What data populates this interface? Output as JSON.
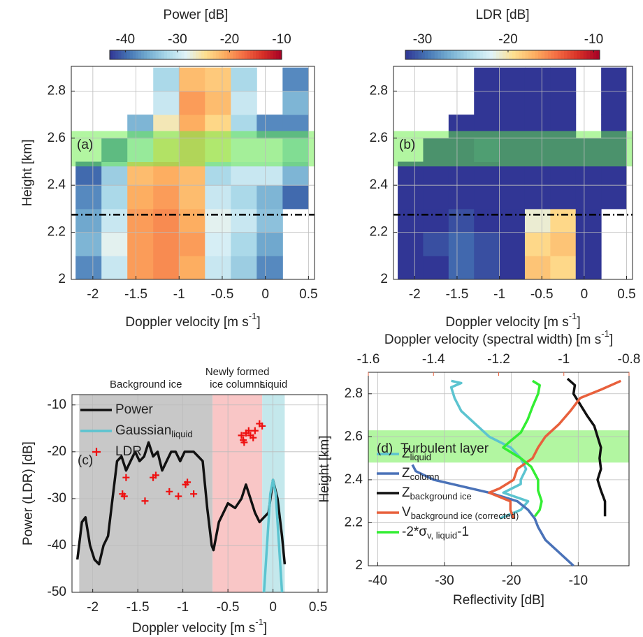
{
  "chart_data": [
    {
      "type": "heatmap",
      "colorbar_label": "Power [dB]",
      "clim": [
        -43,
        -10
      ],
      "cticks": [
        -40,
        -30,
        -20,
        -10
      ],
      "panel_label": "(a)",
      "xlabel": "Doppler velocity [m s",
      "xlabel_sup": "-1",
      "xlabel_end": "]",
      "ylabel": "Height [km]",
      "xlim": [
        -2.25,
        0.57
      ],
      "ylim": [
        2,
        2.905
      ],
      "xticks": [
        -2,
        -1.5,
        -1,
        -0.5,
        0,
        0.5
      ],
      "yticks": [
        2,
        2.2,
        2.4,
        2.6,
        2.8
      ],
      "grid": true,
      "colormap": [
        "#313695",
        "#4575b4",
        "#74add1",
        "#abd9e9",
        "#e0f3f8",
        "#fee090",
        "#fdae61",
        "#f46d43",
        "#d73027",
        "#a50026"
      ],
      "x_edges": [
        -2.2,
        -1.9,
        -1.6,
        -1.3,
        -1.0,
        -0.7,
        -0.4,
        -0.1,
        0.2,
        0.5
      ],
      "y_edges": [
        2.0,
        2.1,
        2.2,
        2.3,
        2.4,
        2.5,
        2.6,
        2.7,
        2.8,
        2.9
      ],
      "values": [
        [
          -38,
          -30,
          -20,
          -19,
          -21,
          -30,
          -33,
          -38,
          null
        ],
        [
          -35,
          -28,
          -20,
          -19,
          -20,
          -29,
          -32,
          -36,
          null
        ],
        [
          -36,
          -30,
          -20,
          -19,
          -21,
          -28,
          -30,
          -34,
          null
        ],
        [
          -38,
          -32,
          -21,
          -20,
          -22,
          -30,
          -32,
          -35,
          -40
        ],
        [
          -40,
          -33,
          -22,
          -21,
          -22,
          -32,
          -30,
          -30,
          -35
        ],
        [
          null,
          -38,
          -30,
          -24,
          -22,
          -25,
          -28,
          -28,
          -33
        ],
        [
          null,
          null,
          -35,
          -26,
          -21,
          -24,
          -32,
          -38,
          -38
        ],
        [
          null,
          null,
          null,
          -30,
          -20,
          -22,
          -30,
          null,
          -35
        ],
        [
          null,
          null,
          null,
          -32,
          -22,
          -23,
          -32,
          null,
          -38
        ]
      ],
      "band": {
        "ylim": [
          2.48,
          2.63
        ],
        "color": "#66ee44"
      },
      "hline": 2.275
    },
    {
      "type": "heatmap",
      "colorbar_label": "LDR [dB]",
      "clim": [
        -32,
        -9.3
      ],
      "cticks": [
        -30,
        -20,
        -10
      ],
      "panel_label": "(b)",
      "xlabel": "Doppler velocity [m s",
      "xlabel_sup": "-1",
      "xlabel_end": "]",
      "xlim": [
        -2.25,
        0.57
      ],
      "ylim": [
        2,
        2.905
      ],
      "xticks": [
        -2,
        -1.5,
        -1,
        -0.5,
        0,
        0.5
      ],
      "yticks": [
        2,
        2.2,
        2.4,
        2.6,
        2.8
      ],
      "grid": true,
      "colormap": [
        "#313695",
        "#4575b4",
        "#74add1",
        "#abd9e9",
        "#e0f3f8",
        "#fee090",
        "#fdae61",
        "#f46d43",
        "#d73027",
        "#a50026"
      ],
      "x_edges": [
        -2.2,
        -1.9,
        -1.6,
        -1.3,
        -1.0,
        -0.7,
        -0.4,
        -0.1,
        0.2,
        0.5
      ],
      "y_edges": [
        2.0,
        2.1,
        2.2,
        2.3,
        2.4,
        2.5,
        2.6,
        2.7,
        2.8,
        2.9
      ],
      "values": [
        [
          -33,
          -32,
          -30,
          -31,
          -33,
          -18,
          -19,
          -33,
          null
        ],
        [
          -33,
          -31,
          -30,
          -31,
          -33,
          -19,
          -18,
          -33,
          null
        ],
        [
          -33,
          -32,
          -31,
          -32,
          -33,
          -21,
          -19,
          -33,
          null
        ],
        [
          -33,
          -33,
          -32,
          -33,
          -33,
          -33,
          -33,
          -33,
          -34
        ],
        [
          -34,
          -33,
          -33,
          -33,
          -33,
          -33,
          -33,
          -33,
          -34
        ],
        [
          null,
          -33,
          -33,
          -31,
          -33,
          -33,
          -33,
          -33,
          -34
        ],
        [
          null,
          null,
          -33,
          -33,
          -33,
          -33,
          -33,
          null,
          -34
        ],
        [
          null,
          null,
          null,
          -33,
          -33,
          -33,
          -33,
          null,
          -34
        ],
        [
          null,
          null,
          null,
          -33,
          -33,
          -33,
          -33,
          null,
          -34
        ]
      ],
      "band": {
        "ylim": [
          2.48,
          2.63
        ],
        "color": "#66ee44"
      },
      "hline": 2.275
    },
    {
      "type": "line",
      "panel_label": "(c)",
      "xlabel": "Doppler velocity [m s",
      "xlabel_sup": "-1",
      "xlabel_end": "]",
      "ylabel": "Power (LDR) [dB]",
      "xlim": [
        -2.23,
        0.6
      ],
      "ylim": [
        -50,
        -7.8
      ],
      "xticks": [
        -2,
        -1.5,
        -1,
        -0.5,
        0,
        0.5
      ],
      "yticks": [
        -50,
        -40,
        -30,
        -20,
        -10
      ],
      "grid": true,
      "regions": [
        {
          "lines": [
            "Background ice"
          ],
          "xlim": [
            -2.15,
            -0.67
          ],
          "color": "#c8c8c8",
          "text_color": "#111111"
        },
        {
          "lines": [
            "Newly formed",
            "ice columns"
          ],
          "xlim": [
            -0.67,
            -0.12
          ],
          "color": "#f9c6c6",
          "text_color": "#e8202a"
        },
        {
          "lines": [
            "Liquid"
          ],
          "xlim": [
            -0.12,
            0.13
          ],
          "color": "#c4e8ec",
          "text_color": "#2a7fb0"
        }
      ],
      "series": [
        {
          "name": "Power",
          "color": "#111111",
          "mode": "line",
          "x": [
            -2.17,
            -2.12,
            -2.08,
            -2.03,
            -1.98,
            -1.93,
            -1.88,
            -1.83,
            -1.78,
            -1.73,
            -1.68,
            -1.63,
            -1.58,
            -1.53,
            -1.48,
            -1.43,
            -1.38,
            -1.33,
            -1.28,
            -1.23,
            -1.18,
            -1.13,
            -1.08,
            -1.03,
            -0.98,
            -0.93,
            -0.88,
            -0.83,
            -0.78,
            -0.73,
            -0.68,
            -0.66,
            -0.6,
            -0.55,
            -0.5,
            -0.42,
            -0.35,
            -0.3,
            -0.25,
            -0.2,
            -0.15,
            -0.1,
            -0.05,
            0.0,
            0.05,
            0.1,
            0.13
          ],
          "values": [
            -43,
            -35,
            -34,
            -40,
            -43,
            -44,
            -40,
            -38,
            -30,
            -22,
            -21,
            -24,
            -22,
            -20,
            -22,
            -21,
            -18,
            -21,
            -20,
            -24,
            -22,
            -20,
            -20,
            -22,
            -20,
            -20,
            -20,
            -21,
            -22,
            -32,
            -40,
            -41,
            -35,
            -33,
            -31,
            -32,
            -30,
            -27,
            -30,
            -33,
            -35,
            -34,
            -33,
            -26,
            -30,
            -38,
            -44
          ]
        },
        {
          "name": "Gaussian",
          "subscript": "liquid",
          "color": "#5cc4d0",
          "mode": "line",
          "x": [
            -0.1,
            -0.06,
            -0.03,
            0,
            0.03,
            0.06,
            0.1
          ],
          "values": [
            -50,
            -38,
            -29,
            -26,
            -29,
            -38,
            -50
          ]
        },
        {
          "name": "LDR",
          "color": "#ee1111",
          "mode": "plus",
          "x": [
            -1.67,
            -1.65,
            -1.63,
            -1.42,
            -1.33,
            -1.3,
            -1.15,
            -1.05,
            -0.97,
            -0.95,
            -0.88,
            -0.35,
            -0.33,
            -0.3,
            -0.27,
            -0.25,
            -0.22,
            -0.2,
            -0.15,
            -0.12,
            -0.32
          ],
          "values": [
            -29,
            -29.5,
            -25.5,
            -30.5,
            -25.5,
            -25,
            -28.5,
            -29.5,
            -27,
            -26.5,
            -29,
            -16.5,
            -17.5,
            -16,
            -15.5,
            -16.5,
            -17,
            -15.5,
            -14,
            -14.5,
            -18
          ]
        }
      ]
    },
    {
      "type": "line",
      "panel_label": "(d)",
      "annotation": "Turbulent layer",
      "xlabel": "Reflectivity [dB]",
      "ylabel": "Height [km]",
      "x2label": "Doppler velocity (spectral width) [m s",
      "x2label_sup": "-1",
      "x2label_end": "]",
      "x2color": "#e8603c",
      "xlim": [
        -41.4,
        -2.4
      ],
      "xticks": [
        -40,
        -30,
        -20,
        -10
      ],
      "x2lim": [
        -1.6,
        -0.8
      ],
      "x2ticks": [
        -1.6,
        -1.4,
        -1.2,
        -1,
        -0.8
      ],
      "ylim": [
        2,
        2.9
      ],
      "yticks": [
        2,
        2.2,
        2.4,
        2.6,
        2.8
      ],
      "grid": true,
      "band": {
        "ylim": [
          2.48,
          2.63
        ],
        "color": "#66ee44"
      },
      "series": [
        {
          "name": "Z",
          "subscript": "liquid",
          "color": "#5cc4d0",
          "heights": [
            2.86,
            2.85,
            2.83,
            2.78,
            2.72,
            2.66,
            2.6,
            2.55,
            2.5,
            2.45,
            2.4,
            2.38,
            2.34,
            2.3,
            2.26,
            2.22
          ],
          "values": [
            -29.0,
            -27.5,
            -29.0,
            -28.5,
            -27.5,
            -25.4,
            -23.3,
            -20.1,
            -18.6,
            -17.8,
            -18.6,
            -18.6,
            -21.2,
            -17.5,
            -18.6,
            -21.7
          ]
        },
        {
          "name": "Z",
          "subscript": "column",
          "color": "#4a72b8",
          "heights": [
            2.47,
            2.44,
            2.4,
            2.37,
            2.34,
            2.3,
            2.26,
            2.22,
            2.18,
            2.12,
            2.06,
            2.0
          ],
          "values": [
            -34.8,
            -34.3,
            -31.6,
            -27.5,
            -23.3,
            -19.1,
            -17.5,
            -16.5,
            -16.0,
            -14.9,
            -12.8,
            -10.7
          ]
        },
        {
          "name": "Z",
          "subscript": "background ice",
          "color": "#111111",
          "heights": [
            2.87,
            2.84,
            2.8,
            2.75,
            2.7,
            2.65,
            2.6,
            2.55,
            2.5,
            2.45,
            2.4,
            2.35,
            2.3,
            2.23
          ],
          "values": [
            -11.6,
            -10.5,
            -10.7,
            -9.7,
            -8.7,
            -7.6,
            -7.1,
            -6.6,
            -6.8,
            -6.6,
            -7.1,
            -6.6,
            -6.0,
            -6.0
          ]
        },
        {
          "name": "V",
          "subscript": "background ice (corrected)",
          "color": "#e8603c",
          "axis": "x2",
          "heights": [
            2.86,
            2.82,
            2.78,
            2.72,
            2.66,
            2.6,
            2.55,
            2.5,
            2.45,
            2.4,
            2.36,
            2.34,
            2.3,
            2.26,
            2.22
          ],
          "values": [
            -0.825,
            -0.885,
            -0.95,
            -0.98,
            -1.014,
            -1.057,
            -1.079,
            -1.096,
            -1.143,
            -1.154,
            -1.197,
            -1.229,
            -1.164,
            -1.164,
            -1.154
          ]
        },
        {
          "name": "-2*σ",
          "subscript": "v, liquid",
          "suffix": "-1",
          "color": "#33ee33",
          "axis": "x2",
          "heights": [
            2.86,
            2.84,
            2.8,
            2.74,
            2.68,
            2.62,
            2.58,
            2.55,
            2.5,
            2.46,
            2.4,
            2.35,
            2.3,
            2.26,
            2.23
          ],
          "values": [
            -1.096,
            -1.074,
            -1.079,
            -1.096,
            -1.111,
            -1.132,
            -1.164,
            -1.186,
            -1.132,
            -1.1,
            -1.079,
            -1.079,
            -1.068,
            -1.074,
            -1.089
          ]
        }
      ]
    }
  ]
}
